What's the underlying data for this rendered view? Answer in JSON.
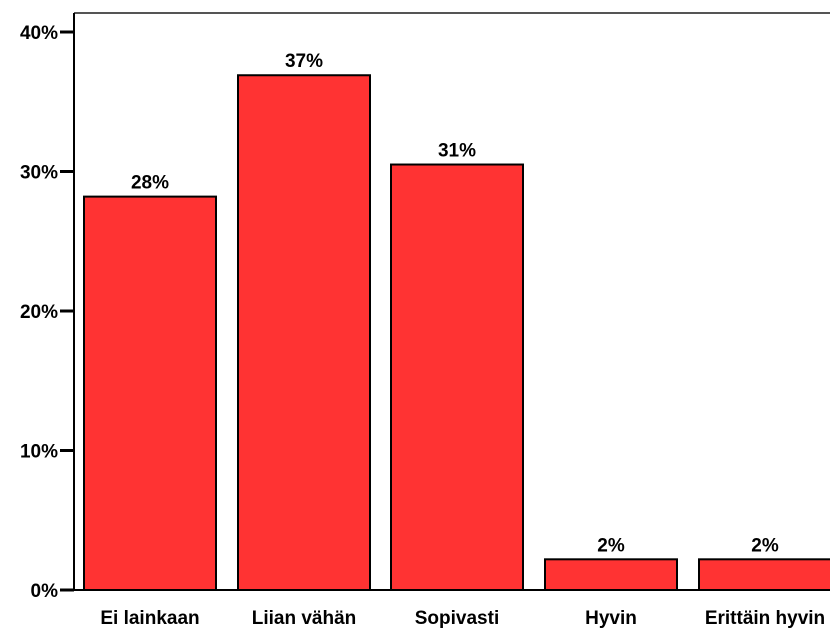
{
  "chart_data": {
    "type": "bar",
    "title": "",
    "xlabel": "",
    "ylabel": "",
    "categories": [
      "Ei lainkaan",
      "Liian vähän",
      "Sopivasti",
      "Hyvin",
      "Erittäin hyvin"
    ],
    "values": [
      28.2,
      36.9,
      30.5,
      2.2,
      2.2
    ],
    "value_labels": [
      "28%",
      "37%",
      "31%",
      "2%",
      "2%"
    ],
    "ylim": [
      0,
      41
    ],
    "yticks": [
      0,
      10,
      20,
      30,
      40
    ],
    "ytick_labels": [
      "0%",
      "10%",
      "20%",
      "30%",
      "40%"
    ],
    "grid": false,
    "colors": {
      "bar_fill": "#ff3333",
      "bar_stroke": "#000000",
      "axis": "#000000",
      "frame": "#555555",
      "background": "#ffffff"
    }
  }
}
